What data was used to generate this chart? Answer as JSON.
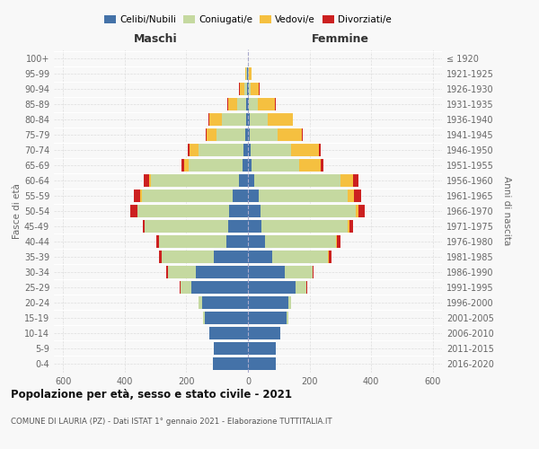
{
  "age_groups": [
    "0-4",
    "5-9",
    "10-14",
    "15-19",
    "20-24",
    "25-29",
    "30-34",
    "35-39",
    "40-44",
    "45-49",
    "50-54",
    "55-59",
    "60-64",
    "65-69",
    "70-74",
    "75-79",
    "80-84",
    "85-89",
    "90-94",
    "95-99",
    "100+"
  ],
  "birth_years": [
    "2016-2020",
    "2011-2015",
    "2006-2010",
    "2001-2005",
    "1996-2000",
    "1991-1995",
    "1986-1990",
    "1981-1985",
    "1976-1980",
    "1971-1975",
    "1966-1970",
    "1961-1965",
    "1956-1960",
    "1951-1955",
    "1946-1950",
    "1941-1945",
    "1936-1940",
    "1931-1935",
    "1926-1930",
    "1921-1925",
    "≤ 1920"
  ],
  "male": {
    "celibi": [
      115,
      110,
      125,
      140,
      150,
      185,
      170,
      110,
      70,
      65,
      60,
      50,
      30,
      18,
      15,
      8,
      5,
      5,
      3,
      2,
      0
    ],
    "coniugati": [
      0,
      0,
      0,
      5,
      10,
      35,
      90,
      170,
      220,
      270,
      300,
      295,
      285,
      175,
      145,
      95,
      80,
      30,
      8,
      3,
      0
    ],
    "vedovi": [
      0,
      0,
      0,
      0,
      0,
      0,
      0,
      0,
      0,
      0,
      0,
      5,
      5,
      15,
      30,
      30,
      40,
      30,
      15,
      5,
      0
    ],
    "divorziati": [
      0,
      0,
      0,
      0,
      0,
      2,
      5,
      8,
      8,
      5,
      22,
      20,
      18,
      8,
      5,
      5,
      2,
      2,
      2,
      0,
      0
    ]
  },
  "female": {
    "nubili": [
      90,
      90,
      105,
      125,
      130,
      155,
      120,
      80,
      55,
      45,
      40,
      35,
      20,
      12,
      10,
      5,
      5,
      3,
      2,
      0,
      0
    ],
    "coniugate": [
      0,
      0,
      0,
      5,
      10,
      35,
      90,
      180,
      230,
      280,
      310,
      290,
      280,
      155,
      130,
      90,
      60,
      30,
      8,
      3,
      0
    ],
    "vedove": [
      0,
      0,
      0,
      0,
      0,
      0,
      0,
      2,
      5,
      5,
      10,
      20,
      40,
      70,
      90,
      80,
      80,
      55,
      25,
      8,
      0
    ],
    "divorziate": [
      0,
      0,
      0,
      0,
      0,
      2,
      2,
      8,
      10,
      12,
      20,
      22,
      20,
      8,
      5,
      2,
      2,
      2,
      2,
      0,
      0
    ]
  },
  "colors": {
    "celibi": "#4472a8",
    "coniugati": "#c5d9a0",
    "vedovi": "#f5c040",
    "divorziati": "#cc2020"
  },
  "legend_labels": [
    "Celibi/Nubili",
    "Coniugati/e",
    "Vedovi/e",
    "Divorziati/e"
  ],
  "title": "Popolazione per età, sesso e stato civile - 2021",
  "subtitle": "COMUNE DI LAURIA (PZ) - Dati ISTAT 1° gennaio 2021 - Elaborazione TUTTITALIA.IT",
  "xlabel_left": "Maschi",
  "xlabel_right": "Femmine",
  "ylabel": "Fasce di età",
  "ylabel_right": "Anni di nascita",
  "xlim": 630,
  "background_color": "#f8f8f8"
}
